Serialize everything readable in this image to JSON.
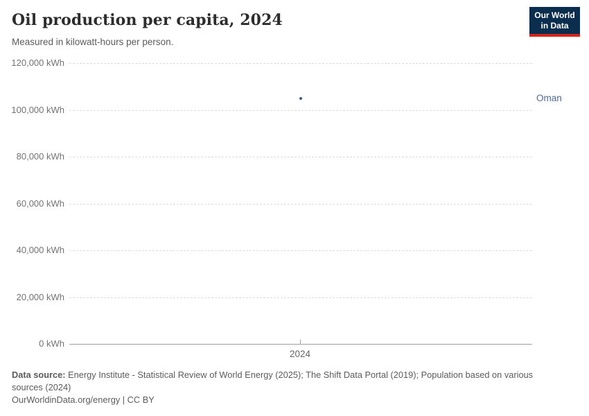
{
  "header": {
    "title": "Oil production per capita, 2024",
    "subtitle": "Measured in kilowatt-hours per person.",
    "logo": {
      "line1": "Our World",
      "line2": "in Data"
    }
  },
  "chart_data": {
    "type": "scatter",
    "title": "Oil production per capita, 2024",
    "unit": "kWh",
    "x": [
      2024
    ],
    "series": [
      {
        "name": "Oman",
        "values": [
          105000
        ],
        "color": "#4c6a9d",
        "dot_color": "#3d5a8c"
      }
    ],
    "ylim": [
      0,
      120000
    ],
    "yticks": [
      0,
      20000,
      40000,
      60000,
      80000,
      100000,
      120000
    ],
    "ytick_labels": [
      "0 kWh",
      "20,000 kWh",
      "40,000 kWh",
      "60,000 kWh",
      "80,000 kWh",
      "100,000 kWh",
      "120,000 kWh"
    ],
    "xtick_labels": [
      "2024"
    ],
    "grid": "horizontal dashed",
    "legend_position": "right-of-plot entity label"
  },
  "footer": {
    "datasource_label": "Data source:",
    "datasource_text": " Energy Institute - Statistical Review of World Energy (2025); The Shift Data Portal (2019); Population based on various sources (2024)",
    "link_line": "OurWorldinData.org/energy | CC BY"
  }
}
